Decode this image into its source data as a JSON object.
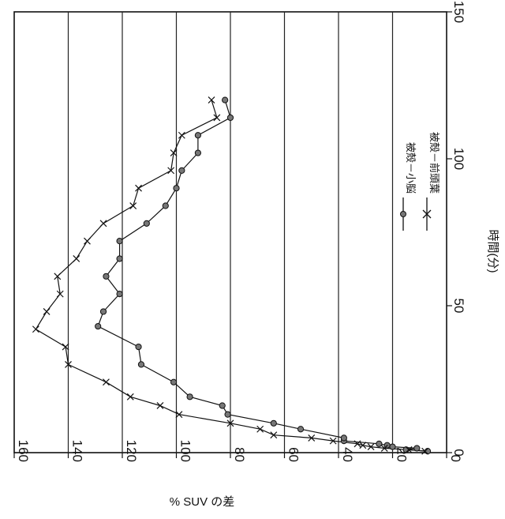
{
  "chart_data": {
    "type": "line",
    "x_axis": {
      "label": "時間(分)",
      "range": [
        0,
        150
      ],
      "ticks": [
        0,
        50,
        100,
        150
      ]
    },
    "y_axis": {
      "label": "% SUV の差",
      "range": [
        0,
        160
      ],
      "ticks": [
        0,
        20,
        40,
        60,
        80,
        100,
        120,
        140,
        160
      ]
    },
    "grid": {
      "horizontal_lines_at": [
        20,
        40,
        60,
        80,
        100,
        120,
        140
      ],
      "vertical_lines": false
    },
    "orientation": "rotated 90 degrees (x axis runs bottom-to-top along right edge)",
    "legend_position": "right-center",
    "series": [
      {
        "name": "被殻－小脳",
        "marker": "filled-circle",
        "points": [
          [
            0.5,
            7
          ],
          [
            1,
            15
          ],
          [
            1.5,
            11
          ],
          [
            2,
            20
          ],
          [
            2.5,
            22
          ],
          [
            3,
            25
          ],
          [
            4,
            38
          ],
          [
            5,
            38
          ],
          [
            8,
            54
          ],
          [
            10,
            64
          ],
          [
            13,
            81
          ],
          [
            16,
            83
          ],
          [
            19,
            95
          ],
          [
            24,
            101
          ],
          [
            30,
            113
          ],
          [
            36,
            114
          ],
          [
            43,
            129
          ],
          [
            48,
            127
          ],
          [
            54,
            121
          ],
          [
            60,
            126
          ],
          [
            66,
            121
          ],
          [
            72,
            121
          ],
          [
            78,
            111
          ],
          [
            84,
            104
          ],
          [
            90,
            100
          ],
          [
            96,
            98
          ],
          [
            102,
            92
          ],
          [
            108,
            92
          ],
          [
            114,
            80
          ],
          [
            120,
            82
          ]
        ]
      },
      {
        "name": "被殻－前頭葉",
        "marker": "x",
        "points": [
          [
            0.5,
            8
          ],
          [
            1,
            14
          ],
          [
            1.5,
            23
          ],
          [
            2,
            28
          ],
          [
            2.5,
            31
          ],
          [
            3,
            33
          ],
          [
            4,
            42
          ],
          [
            5,
            50
          ],
          [
            6,
            64
          ],
          [
            8,
            69
          ],
          [
            10,
            80
          ],
          [
            13,
            99
          ],
          [
            16,
            106
          ],
          [
            19,
            117
          ],
          [
            24,
            126
          ],
          [
            30,
            140
          ],
          [
            36,
            141
          ],
          [
            42,
            152
          ],
          [
            48,
            148
          ],
          [
            54,
            143
          ],
          [
            60,
            144
          ],
          [
            66,
            137
          ],
          [
            72,
            133
          ],
          [
            78,
            127
          ],
          [
            84,
            116
          ],
          [
            90,
            114
          ],
          [
            96,
            102
          ],
          [
            102,
            101
          ],
          [
            108,
            98
          ],
          [
            114,
            85
          ],
          [
            120,
            87
          ]
        ]
      }
    ]
  }
}
